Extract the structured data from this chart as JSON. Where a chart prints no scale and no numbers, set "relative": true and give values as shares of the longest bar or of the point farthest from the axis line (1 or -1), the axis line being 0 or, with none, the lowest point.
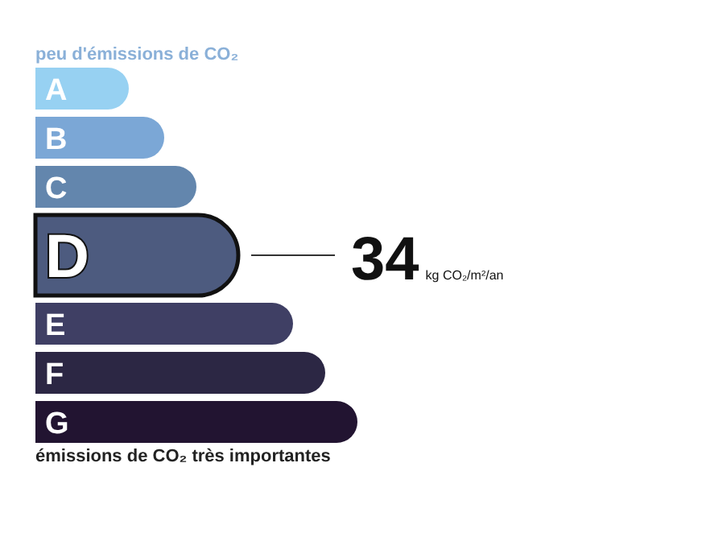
{
  "chart_data": {
    "type": "bar",
    "orientation": "horizontal",
    "relative": true,
    "title": "peu d'émissions de CO₂",
    "categories": [
      "A",
      "B",
      "C",
      "D",
      "E",
      "F",
      "G"
    ],
    "values": [
      0.29,
      0.4,
      0.5,
      0.63,
      0.8,
      0.9,
      1
    ],
    "colors": [
      "#97d1f2",
      "#7ba7d6",
      "#6386ad",
      "#4d5b7f",
      "#3f3f64",
      "#2c2744",
      "#221431"
    ],
    "annotations": [
      {
        "text": "34",
        "x": 0.63,
        "y": "D"
      },
      "kg CO₂/m²/an",
      "émissions de CO₂ très importantes"
    ]
  }
}
